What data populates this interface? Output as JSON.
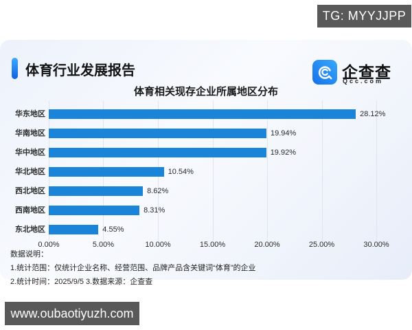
{
  "overlays": {
    "tg_badge": "TG: MYYJJPP",
    "website": "www.oubaotiyuzh.com"
  },
  "header": {
    "report_title": "体育行业发展报告",
    "logo": {
      "name": "企查查",
      "domain": "Qcc.com",
      "icon": "qcc-spiral-c-icon",
      "brand_color": "#1e83f0"
    }
  },
  "chart_data": {
    "type": "bar",
    "orientation": "horizontal",
    "title": "体育相关现存企业所属地区分布",
    "categories": [
      "华东地区",
      "华南地区",
      "华中地区",
      "华北地区",
      "西北地区",
      "西南地区",
      "东北地区"
    ],
    "values": [
      28.12,
      19.94,
      19.92,
      10.54,
      8.62,
      8.31,
      4.55
    ],
    "value_labels": [
      "28.12%",
      "19.94%",
      "19.92%",
      "10.54%",
      "8.62%",
      "8.31%",
      "4.55%"
    ],
    "xlim": [
      0,
      30
    ],
    "x_ticks": [
      "0.00%",
      "5.00%",
      "10.00%",
      "15.00%",
      "20.00%",
      "25.00%",
      "30.00%"
    ],
    "bar_color": "#1984d8",
    "gridline_color": "#dfe4ee",
    "grid": true,
    "legend": false
  },
  "notes": {
    "heading": "数据说明：",
    "line1": "1.统计范围：仅统计企业名称、经营范围、品牌产品含关键词“体育”的企业",
    "line2": "2.统计时间：2025/9/5  3.数据来源：企查查"
  }
}
